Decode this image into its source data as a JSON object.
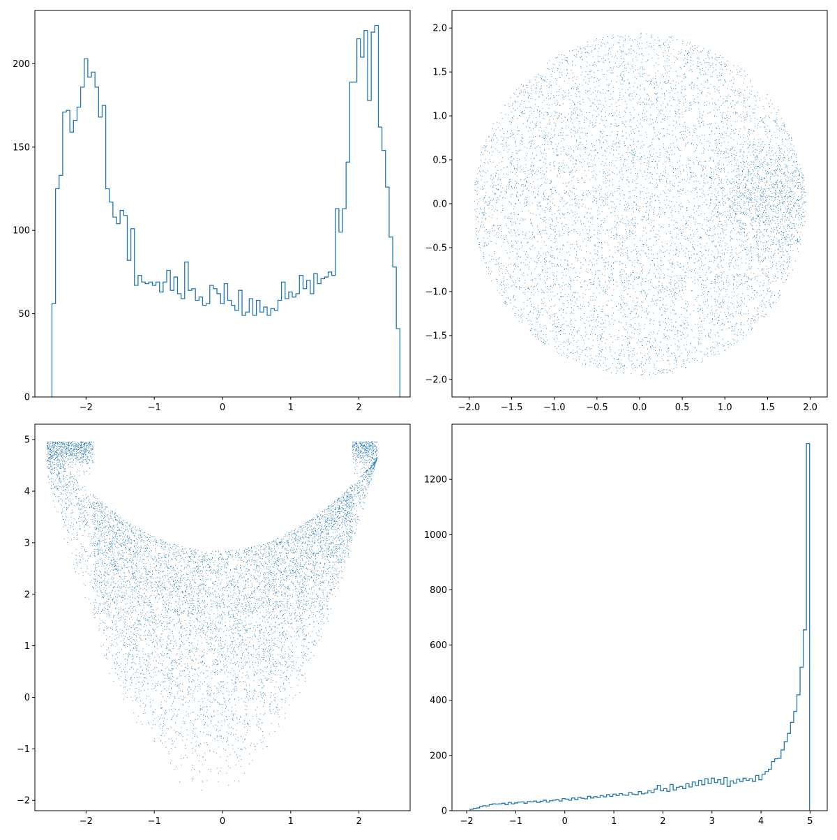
{
  "colors": {
    "series": "#1f77b4",
    "axes": "#000000",
    "background": "#ffffff"
  },
  "chart_data": [
    {
      "id": "top-left",
      "type": "histogram",
      "title": "",
      "xlabel": "",
      "ylabel": "",
      "xlim": [
        -2.75,
        2.75
      ],
      "ylim": [
        0,
        232
      ],
      "xticks": [
        "−2",
        "−1",
        "0",
        "1",
        "2"
      ],
      "xtick_values": [
        -2,
        -1,
        0,
        1,
        2
      ],
      "yticks": [
        "0",
        "50",
        "100",
        "150",
        "200"
      ],
      "ytick_values": [
        0,
        50,
        100,
        150,
        200
      ],
      "bin_range": [
        -2.5,
        2.6
      ],
      "counts": [
        56,
        125,
        133,
        171,
        172,
        159,
        166,
        174,
        186,
        203,
        192,
        195,
        186,
        168,
        175,
        125,
        117,
        108,
        104,
        112,
        109,
        82,
        101,
        67,
        73,
        69,
        68,
        69,
        67,
        69,
        63,
        69,
        76,
        64,
        72,
        62,
        59,
        81,
        64,
        65,
        58,
        60,
        55,
        56,
        67,
        65,
        62,
        56,
        68,
        58,
        55,
        52,
        64,
        49,
        51,
        59,
        49,
        58,
        51,
        54,
        49,
        53,
        52,
        58,
        69,
        59,
        63,
        60,
        62,
        73,
        65,
        70,
        62,
        74,
        68,
        71,
        72,
        75,
        73,
        113,
        99,
        113,
        141,
        189,
        189,
        215,
        204,
        220,
        178,
        219,
        223,
        162,
        148,
        126,
        96,
        78,
        41
      ]
    },
    {
      "id": "top-right",
      "type": "scatter",
      "title": "",
      "xlabel": "",
      "ylabel": "",
      "xlim": [
        -2.2,
        2.2
      ],
      "ylim": [
        -2.2,
        2.2
      ],
      "xticks": [
        "−2.0",
        "−1.5",
        "−1.0",
        "−0.5",
        "0.0",
        "0.5",
        "1.0",
        "1.5",
        "2.0"
      ],
      "xtick_values": [
        -2,
        -1.5,
        -1,
        -0.5,
        0,
        0.5,
        1,
        1.5,
        2
      ],
      "yticks": [
        "−2.0",
        "−1.5",
        "−1.0",
        "−0.5",
        "0.0",
        "0.5",
        "1.0",
        "1.5",
        "2.0"
      ],
      "ytick_values": [
        -2,
        -1.5,
        -1,
        -0.5,
        0,
        0.5,
        1,
        1.5,
        2
      ],
      "shape": "uniform disk of radius 1.95 centered at (0,0), denser near (1.6, 0)",
      "n_points": 8000
    },
    {
      "id": "bottom-left",
      "type": "scatter",
      "title": "",
      "xlabel": "",
      "ylabel": "",
      "xlim": [
        -2.75,
        2.75
      ],
      "ylim": [
        -2.2,
        5.3
      ],
      "xticks": [
        "−2",
        "−1",
        "0",
        "1",
        "2"
      ],
      "xtick_values": [
        -2,
        -1,
        0,
        1,
        2
      ],
      "yticks": [
        "−2",
        "−1",
        "0",
        "1",
        "2",
        "3",
        "4",
        "5"
      ],
      "ytick_values": [
        -2,
        -1,
        0,
        1,
        2,
        3,
        4,
        5
      ],
      "shape": "V-shaped band from (-0.2,-1.85) up to x≈±2.5 at y≈4.95, dense near top",
      "n_points": 9000
    },
    {
      "id": "bottom-right",
      "type": "histogram",
      "title": "",
      "xlabel": "",
      "ylabel": "",
      "xlim": [
        -2.3,
        5.35
      ],
      "ylim": [
        0,
        1400
      ],
      "xticks": [
        "−2",
        "−1",
        "0",
        "1",
        "2",
        "3",
        "4",
        "5"
      ],
      "xtick_values": [
        -2,
        -1,
        0,
        1,
        2,
        3,
        4,
        5
      ],
      "yticks": [
        "0",
        "200",
        "400",
        "600",
        "800",
        "1000",
        "1200"
      ],
      "ytick_values": [
        0,
        200,
        400,
        600,
        800,
        1000,
        1200
      ],
      "bin_range": [
        -1.93,
        4.99
      ],
      "counts": [
        5,
        8,
        10,
        15,
        18,
        17,
        22,
        25,
        24,
        25,
        27,
        22,
        30,
        25,
        28,
        31,
        32,
        27,
        33,
        32,
        35,
        30,
        34,
        38,
        31,
        36,
        38,
        40,
        35,
        44,
        42,
        38,
        46,
        40,
        48,
        45,
        43,
        52,
        46,
        51,
        48,
        55,
        50,
        58,
        52,
        60,
        55,
        62,
        57,
        56,
        66,
        60,
        58,
        69,
        61,
        64,
        72,
        66,
        78,
        92,
        72,
        80,
        70,
        95,
        75,
        85,
        88,
        80,
        98,
        86,
        104,
        92,
        110,
        94,
        116,
        98,
        118,
        102,
        112,
        96,
        120,
        88,
        108,
        100,
        114,
        106,
        118,
        110,
        116,
        106,
        128,
        112,
        132,
        142,
        150,
        178,
        188,
        190,
        220,
        250,
        280,
        320,
        360,
        420,
        520,
        655,
        1330
      ]
    }
  ]
}
